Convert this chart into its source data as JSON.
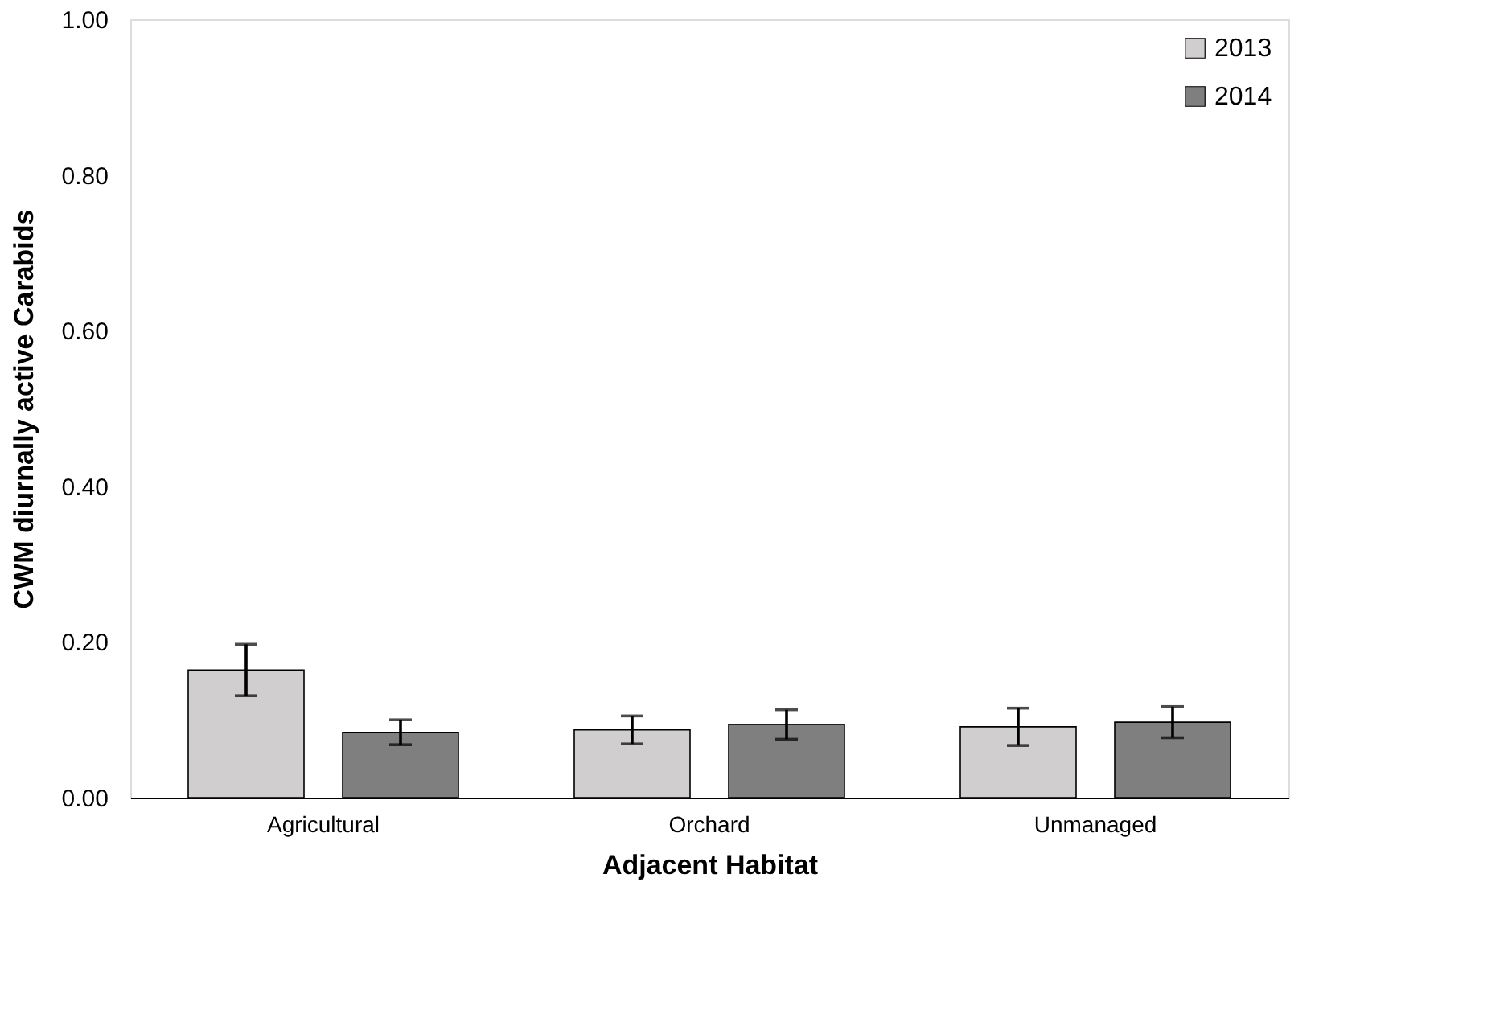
{
  "chart_data": {
    "type": "bar",
    "xlabel": "Adjacent Habitat",
    "ylabel": "CWM diurnally active Carabids",
    "categories": [
      "Agricultural",
      "Orchard",
      "Unmanaged"
    ],
    "series": [
      {
        "name": "2013",
        "color": "#d0cecf",
        "values": [
          0.164,
          0.087,
          0.091
        ],
        "errors": [
          0.033,
          0.018,
          0.024
        ]
      },
      {
        "name": "2014",
        "color": "#7f7f7f",
        "values": [
          0.084,
          0.094,
          0.097
        ],
        "errors": [
          0.016,
          0.019,
          0.02
        ]
      }
    ],
    "ylim": [
      0,
      1
    ],
    "yticks": [
      {
        "value": 0,
        "label": "0.00"
      },
      {
        "value": 0.2,
        "label": "0.20"
      },
      {
        "value": 0.4,
        "label": "0.40"
      },
      {
        "value": 0.6,
        "label": "0.60"
      },
      {
        "value": 0.8,
        "label": "0.80"
      },
      {
        "value": 1,
        "label": "1.00"
      }
    ],
    "grid": false,
    "legend": "top right"
  }
}
